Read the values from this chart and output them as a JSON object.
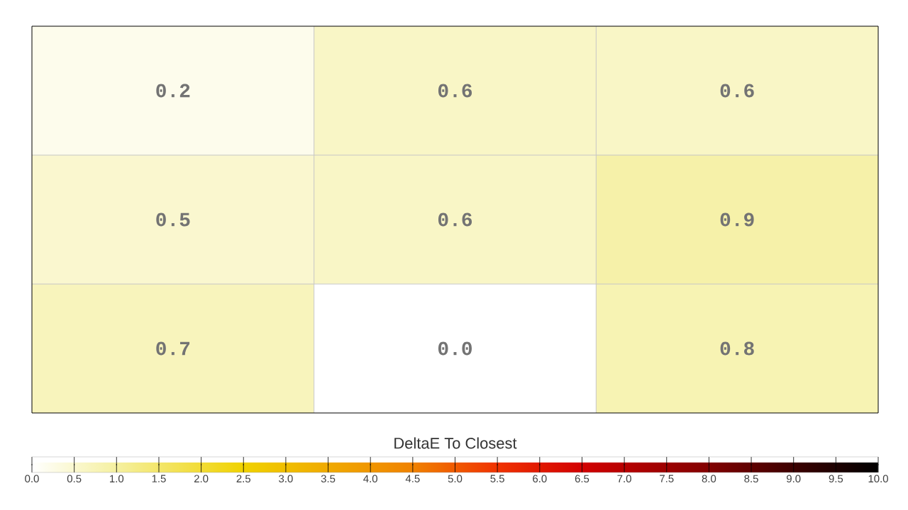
{
  "chart_data": {
    "type": "heatmap",
    "clabel": "DeltaE To Closest",
    "categories": [
      null,
      null,
      null
    ],
    "y_categories": [
      null,
      null,
      null
    ],
    "cells": [
      [
        0.2,
        0.6,
        0.6
      ],
      [
        0.5,
        0.6,
        0.9
      ],
      [
        0.7,
        0.0,
        0.8
      ]
    ],
    "cell_labels": [
      [
        "0.2",
        "0.6",
        "0.6"
      ],
      [
        "0.5",
        "0.6",
        "0.9"
      ],
      [
        "0.7",
        "0.0",
        "0.8"
      ]
    ],
    "clim": [
      0,
      10
    ],
    "cticks": [
      {
        "value": 0,
        "label": "0.0"
      },
      {
        "value": 0.5,
        "label": "0.5"
      },
      {
        "value": 1,
        "label": "1.0"
      },
      {
        "value": 1.5,
        "label": "1.5"
      },
      {
        "value": 2,
        "label": "2.0"
      },
      {
        "value": 2.5,
        "label": "2.5"
      },
      {
        "value": 3,
        "label": "3.0"
      },
      {
        "value": 3.5,
        "label": "3.5"
      },
      {
        "value": 4,
        "label": "4.0"
      },
      {
        "value": 4.5,
        "label": "4.5"
      },
      {
        "value": 5,
        "label": "5.0"
      },
      {
        "value": 5.5,
        "label": "5.5"
      },
      {
        "value": 6,
        "label": "6.0"
      },
      {
        "value": 6.5,
        "label": "6.5"
      },
      {
        "value": 7,
        "label": "7.0"
      },
      {
        "value": 7.5,
        "label": "7.5"
      },
      {
        "value": 8,
        "label": "8.0"
      },
      {
        "value": 8.5,
        "label": "8.5"
      },
      {
        "value": 9,
        "label": "9.0"
      },
      {
        "value": 9.5,
        "label": "9.5"
      },
      {
        "value": 10,
        "label": "10.0"
      }
    ],
    "grid": true
  }
}
